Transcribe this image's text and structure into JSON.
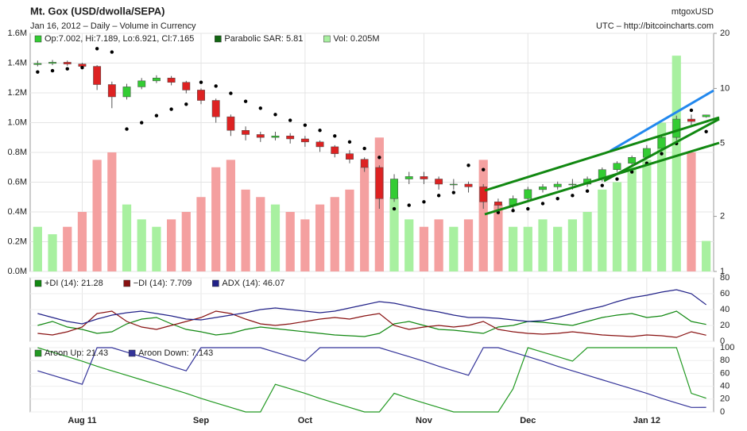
{
  "chart_data": [
    {
      "type": "candlestick",
      "title": "Mt. Gox (USD/dwolla/SEPA)",
      "subtitle": "Jan 16, 2012 – Daily – Volume in Currency",
      "source": "mtgoxUSD",
      "source_url": "UTC – http://bitcoincharts.com",
      "ohlc_label": "Op:7.002, Hi:7.189, Lo:6.921, Cl:7.165",
      "up_color": "#33cc33",
      "down_color": "#dd2222",
      "up_volume_color": "#a8f0a0",
      "down_volume_color": "#f4a0a0",
      "categories": [
        null,
        null,
        null,
        "Aug 11",
        null,
        null,
        null,
        null,
        null,
        null,
        null,
        "Sep",
        null,
        null,
        null,
        null,
        null,
        null,
        "Oct",
        null,
        null,
        null,
        null,
        null,
        null,
        null,
        "Nov",
        null,
        null,
        null,
        null,
        null,
        null,
        "Dec",
        null,
        null,
        null,
        null,
        null,
        null,
        null,
        "Jan 12",
        null,
        null,
        null,
        null
      ],
      "open": [
        13.5,
        13.7,
        13.9,
        13.6,
        13.2,
        10.5,
        9.0,
        10.2,
        11.0,
        11.4,
        10.8,
        9.8,
        8.6,
        7.0,
        5.9,
        5.6,
        5.4,
        5.5,
        5.3,
        5.1,
        4.8,
        4.4,
        4.1,
        3.7,
        2.5,
        3.2,
        3.3,
        3.2,
        3.0,
        3.0,
        2.9,
        2.4,
        2.3,
        2.5,
        2.8,
        2.9,
        3.0,
        3.0,
        3.2,
        3.6,
        3.9,
        4.2,
        4.7,
        5.4,
        6.8,
        7.002
      ],
      "high": [
        14.2,
        14.3,
        14.2,
        13.8,
        13.4,
        10.9,
        10.6,
        11.4,
        11.8,
        11.7,
        11.0,
        10.0,
        8.8,
        7.2,
        6.2,
        5.8,
        5.8,
        5.7,
        5.5,
        5.2,
        4.9,
        4.6,
        4.2,
        3.8,
        3.4,
        3.5,
        3.5,
        3.3,
        3.2,
        3.1,
        3.0,
        2.5,
        2.6,
        2.9,
        3.0,
        3.1,
        3.2,
        3.3,
        3.7,
        4.0,
        4.3,
        4.9,
        5.6,
        7.1,
        7.2,
        7.189
      ],
      "low": [
        13.2,
        13.4,
        13.3,
        12.9,
        9.8,
        7.8,
        8.7,
        9.9,
        10.7,
        10.4,
        9.4,
        8.2,
        6.5,
        5.5,
        5.2,
        5.1,
        5.2,
        5.0,
        4.8,
        4.5,
        4.2,
        3.9,
        3.5,
        2.2,
        2.4,
        3.0,
        3.0,
        2.8,
        2.8,
        2.7,
        2.2,
        2.1,
        2.2,
        2.4,
        2.7,
        2.8,
        2.8,
        2.9,
        3.1,
        3.5,
        3.8,
        4.1,
        4.6,
        5.2,
        6.3,
        6.921
      ],
      "close": [
        13.7,
        13.9,
        13.6,
        13.2,
        10.5,
        9.0,
        10.2,
        11.0,
        11.4,
        10.8,
        9.8,
        8.6,
        7.0,
        5.9,
        5.6,
        5.4,
        5.5,
        5.3,
        5.1,
        4.8,
        4.4,
        4.1,
        3.7,
        2.5,
        3.2,
        3.3,
        3.2,
        3.0,
        3.0,
        2.9,
        2.4,
        2.3,
        2.5,
        2.8,
        2.9,
        3.0,
        3.0,
        3.2,
        3.6,
        3.9,
        4.2,
        4.7,
        5.4,
        6.8,
        6.6,
        7.165
      ],
      "log_scale": true,
      "ylim": [
        1,
        20
      ],
      "yticks": [
        1,
        2,
        5,
        10,
        20
      ],
      "y2lim": [
        0,
        1.6
      ],
      "y2ticks": [
        {
          "value": 0,
          "label": "0.0M"
        },
        {
          "value": 0.2,
          "label": "0.2M"
        },
        {
          "value": 0.4,
          "label": "0.4M"
        },
        {
          "value": 0.6,
          "label": "0.6M"
        },
        {
          "value": 0.8,
          "label": "0.8M"
        },
        {
          "value": 1.0,
          "label": "1.0M"
        },
        {
          "value": 1.2,
          "label": "1.2M"
        },
        {
          "value": 1.4,
          "label": "1.4M"
        },
        {
          "value": 1.6,
          "label": "1.6M"
        }
      ],
      "series": [
        {
          "name": "Parabolic SAR: 5.81",
          "color": "#116611",
          "marker_color": "#000000",
          "values": [
            12.3,
            12.5,
            12.8,
            13.0,
            16.5,
            15.8,
            6.0,
            6.5,
            7.1,
            7.7,
            8.2,
            10.8,
            10.3,
            9.4,
            8.5,
            7.8,
            7.2,
            6.7,
            6.3,
            5.9,
            5.5,
            5.1,
            4.7,
            4.2,
            2.2,
            2.3,
            2.4,
            2.6,
            2.7,
            3.8,
            3.6,
            2.1,
            2.15,
            2.2,
            2.35,
            2.5,
            2.6,
            2.75,
            2.95,
            3.2,
            3.5,
            3.9,
            4.4,
            5.0,
            7.6,
            5.81
          ]
        },
        {
          "name": "Vol: 0.205M",
          "color": "#a8f0a0",
          "axis": "y2",
          "values": [
            0.3,
            0.25,
            0.3,
            0.4,
            0.75,
            0.8,
            0.45,
            0.35,
            0.3,
            0.35,
            0.4,
            0.5,
            0.7,
            0.75,
            0.55,
            0.5,
            0.45,
            0.4,
            0.35,
            0.45,
            0.5,
            0.55,
            0.7,
            0.9,
            0.5,
            0.35,
            0.3,
            0.35,
            0.3,
            0.35,
            0.75,
            0.45,
            0.3,
            0.3,
            0.35,
            0.3,
            0.35,
            0.4,
            0.55,
            0.6,
            0.7,
            0.75,
            1.0,
            1.45,
            0.8,
            0.205
          ]
        }
      ],
      "grid": true
    },
    {
      "type": "line",
      "ylim": [
        0,
        80
      ],
      "yticks": [
        0,
        20,
        40,
        60,
        80
      ],
      "grid": true,
      "series": [
        {
          "name": "+DI (14): 21.28",
          "color": "#118811",
          "values": [
            20,
            25,
            18,
            15,
            10,
            12,
            22,
            28,
            30,
            22,
            15,
            12,
            8,
            10,
            15,
            18,
            16,
            14,
            12,
            10,
            8,
            7,
            6,
            10,
            22,
            25,
            20,
            15,
            14,
            12,
            10,
            18,
            20,
            25,
            24,
            22,
            20,
            25,
            30,
            33,
            35,
            30,
            32,
            38,
            25,
            21.28
          ]
        },
        {
          "name": "−DI (14): 7.709",
          "color": "#881111",
          "values": [
            10,
            8,
            12,
            18,
            35,
            38,
            25,
            18,
            15,
            20,
            25,
            30,
            38,
            35,
            28,
            22,
            20,
            22,
            25,
            28,
            30,
            28,
            32,
            35,
            20,
            15,
            18,
            20,
            18,
            20,
            25,
            15,
            12,
            10,
            9,
            10,
            12,
            10,
            8,
            7,
            6,
            8,
            7,
            5,
            12,
            7.709
          ]
        },
        {
          "name": "ADX (14): 46.07",
          "color": "#222288",
          "values": [
            35,
            30,
            25,
            22,
            28,
            33,
            36,
            38,
            35,
            32,
            28,
            27,
            30,
            33,
            36,
            40,
            42,
            40,
            38,
            36,
            38,
            42,
            46,
            50,
            48,
            44,
            40,
            37,
            33,
            30,
            30,
            29,
            27,
            25,
            26,
            30,
            35,
            40,
            44,
            50,
            55,
            58,
            62,
            65,
            60,
            46.07
          ]
        }
      ]
    },
    {
      "type": "line",
      "ylim": [
        0,
        100
      ],
      "yticks": [
        0,
        20,
        40,
        60,
        80,
        100
      ],
      "grid": true,
      "series": [
        {
          "name": "Aroon Up: 21.43",
          "color": "#229922",
          "values": [
            100,
            93,
            86,
            79,
            71,
            64,
            57,
            50,
            43,
            36,
            29,
            21,
            14,
            7,
            0,
            0,
            43,
            36,
            29,
            21,
            14,
            7,
            0,
            0,
            29,
            21,
            14,
            7,
            0,
            0,
            0,
            0,
            36,
            100,
            93,
            86,
            79,
            100,
            100,
            100,
            100,
            100,
            100,
            100,
            29,
            21.43
          ]
        },
        {
          "name": "Aroon Down: 7.143",
          "color": "#333399",
          "values": [
            64,
            57,
            50,
            43,
            100,
            100,
            93,
            86,
            79,
            71,
            64,
            100,
            100,
            100,
            100,
            100,
            93,
            86,
            79,
            100,
            100,
            100,
            100,
            100,
            93,
            86,
            79,
            71,
            64,
            57,
            100,
            100,
            93,
            86,
            79,
            71,
            64,
            57,
            50,
            43,
            36,
            29,
            21,
            14,
            7,
            7.143
          ]
        }
      ]
    }
  ]
}
